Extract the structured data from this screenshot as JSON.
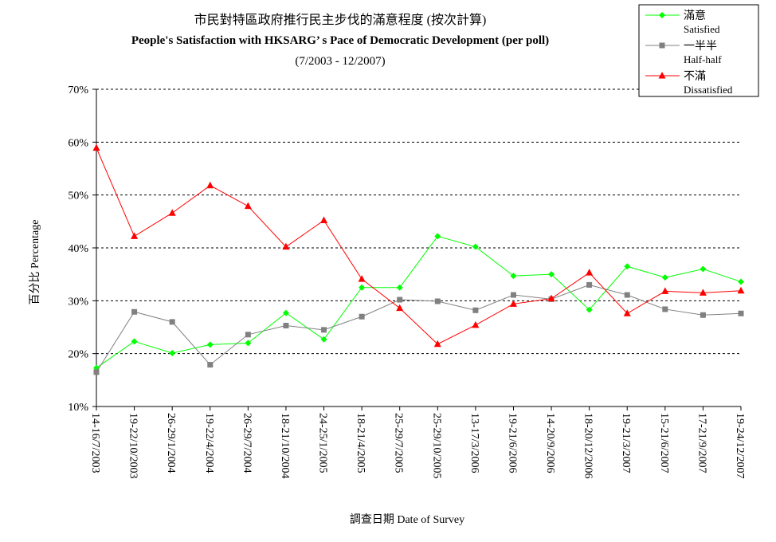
{
  "chart_data": {
    "type": "line",
    "title": "市民對特區政府推行民主步伐的滿意程度 (按次計算)",
    "subtitle": "People's Satisfaction with HKSARG’ s Pace of Democratic Development (per poll)",
    "period": "(7/2003 - 12/2007)",
    "xlabel": "調查日期 Date of Survey",
    "ylabel": "百分比 Percentage",
    "ylim": [
      10,
      70
    ],
    "yticks": [
      "10%",
      "20%",
      "30%",
      "40%",
      "50%",
      "60%",
      "70%"
    ],
    "grid": true,
    "legend_position": "top-right",
    "categories": [
      "14-16/7/2003",
      "19-22/10/2003",
      "26-29/1/2004",
      "19-22/4/2004",
      "26-29/7/2004",
      "18-21/10/2004",
      "24-25/1/2005",
      "18-21/4/2005",
      "25-29/7/2005",
      "25-29/10/2005",
      "13-17/3/2006",
      "19-21/6/2006",
      "14-20/9/2006",
      "18-20/12/2006",
      "19-21/3/2007",
      "15-21/6/2007",
      "17-21/9/2007",
      "19-24/12/2007"
    ],
    "series": [
      {
        "name": "滿意",
        "name_en": "Satisfied",
        "color": "#00ff00",
        "marker": "diamond",
        "values": [
          17.3,
          22.3,
          20.1,
          21.7,
          22.0,
          27.7,
          22.7,
          32.5,
          32.5,
          42.2,
          40.2,
          34.7,
          35.0,
          28.3,
          36.5,
          34.4,
          36.0,
          33.6
        ]
      },
      {
        "name": "一半半",
        "name_en": "Half-half",
        "color": "#808080",
        "marker": "square",
        "values": [
          16.5,
          27.9,
          26.0,
          17.9,
          23.6,
          25.3,
          24.5,
          27.0,
          30.2,
          29.9,
          28.2,
          31.1,
          30.3,
          33.0,
          31.1,
          28.4,
          27.3,
          27.6
        ]
      },
      {
        "name": "不滿",
        "name_en": "Dissatisfied",
        "color": "#ff0000",
        "marker": "triangle",
        "values": [
          58.9,
          42.2,
          46.6,
          51.8,
          47.9,
          40.2,
          45.2,
          34.1,
          28.6,
          21.8,
          25.4,
          29.4,
          30.4,
          35.3,
          27.6,
          31.8,
          31.5,
          31.9
        ]
      }
    ]
  }
}
